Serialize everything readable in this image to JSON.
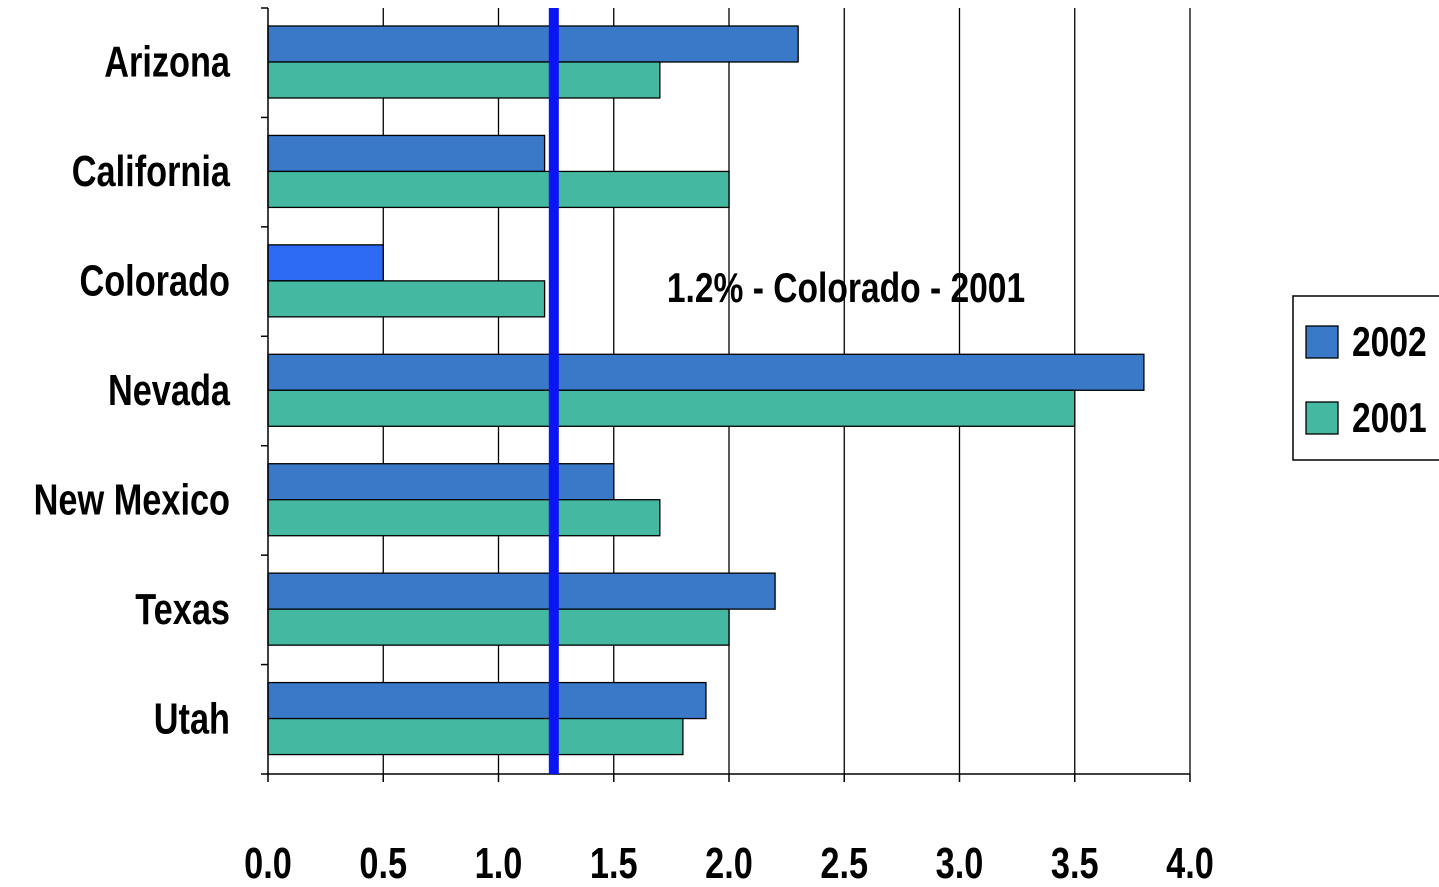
{
  "chart_data": {
    "type": "bar",
    "orientation": "horizontal",
    "categories": [
      "Arizona",
      "California",
      "Colorado",
      "Nevada",
      "New Mexico",
      "Texas",
      "Utah"
    ],
    "series": [
      {
        "name": "2002",
        "color": "#3a78c8",
        "values": [
          2.3,
          1.2,
          0.5,
          3.8,
          1.5,
          2.2,
          1.9
        ]
      },
      {
        "name": "2001",
        "color": "#44b8a0",
        "values": [
          1.7,
          2.0,
          1.2,
          3.5,
          1.7,
          2.0,
          1.8
        ]
      }
    ],
    "highlight_bar": {
      "category": "Colorado",
      "series": "2002",
      "color": "#2e6bf5"
    },
    "xlim": [
      0,
      4.0
    ],
    "xticks": [
      "0.0",
      "0.5",
      "1.0",
      "1.5",
      "2.0",
      "2.5",
      "3.0",
      "3.5",
      "4.0"
    ],
    "grid": "vertical",
    "reference_line": {
      "value": 1.24,
      "color": "#0a14f5"
    },
    "annotation": "1.2% - Colorado - 2001",
    "legend_position": "right",
    "title": "",
    "xlabel": "",
    "ylabel": ""
  }
}
